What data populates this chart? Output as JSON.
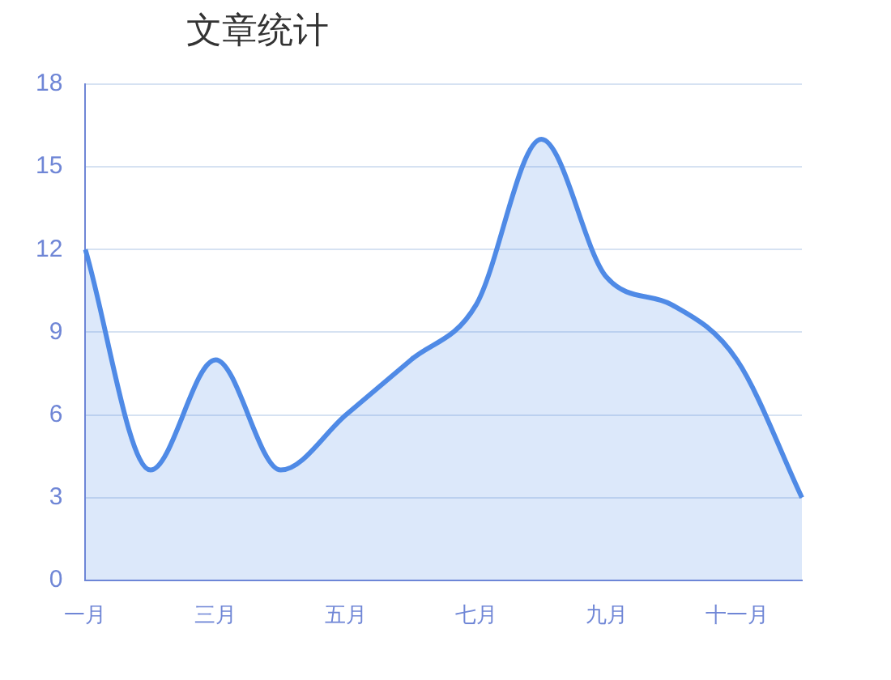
{
  "chart_data": {
    "type": "area",
    "title": "文章统计",
    "categories": [
      "一月",
      null,
      "三月",
      null,
      "五月",
      null,
      "七月",
      null,
      "九月",
      null,
      "十一月",
      null
    ],
    "series": [
      {
        "color": "#4f8ae6",
        "values": [
          12,
          4,
          8,
          4,
          6,
          8,
          10,
          16,
          11,
          10,
          8,
          3
        ]
      }
    ],
    "ylim": [
      0,
      18
    ],
    "yticks": [
      0,
      3,
      6,
      9,
      12,
      15,
      18
    ],
    "grid": "y",
    "legend": false
  }
}
